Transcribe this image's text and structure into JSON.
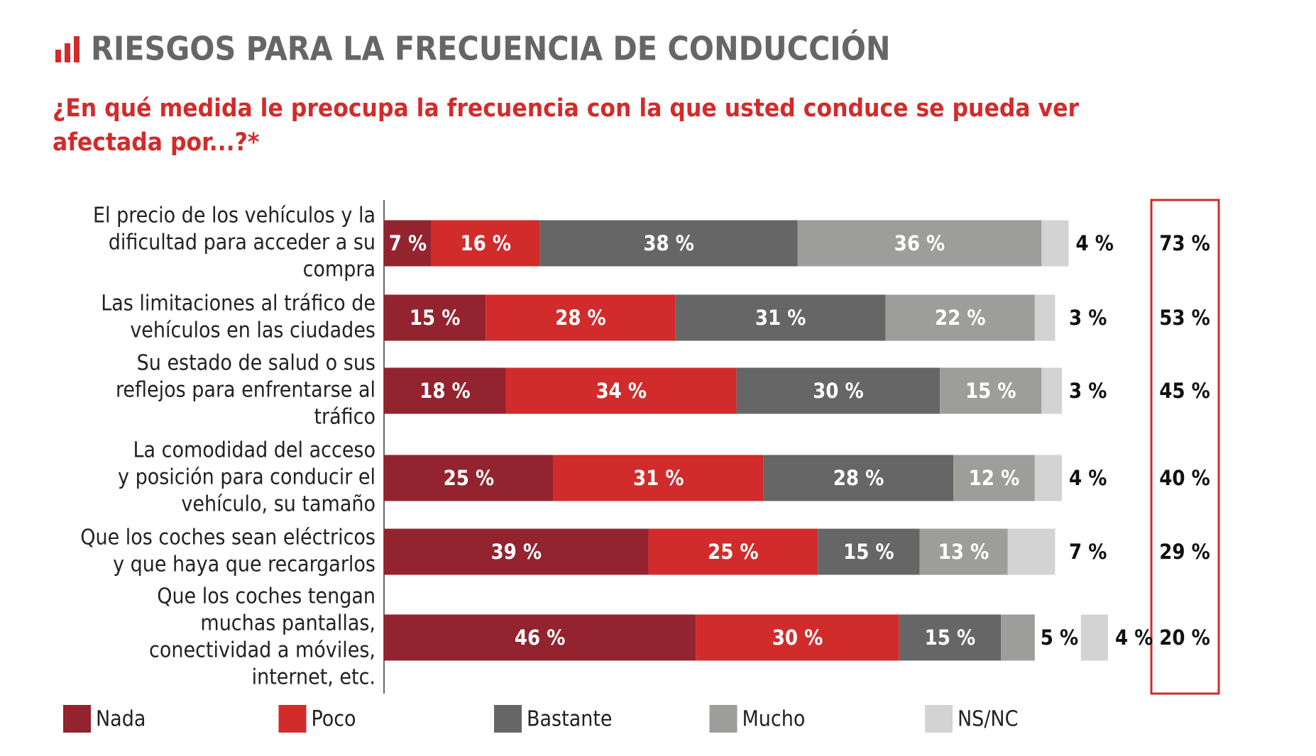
{
  "chart_data": {
    "type": "stacked_bar_horizontal",
    "title": "RIESGOS PARA LA FRECUENCIA DE CONDUCCIÓN",
    "subtitle": [
      "¿En qué medida le preocupa la frecuencia con la que usted conduce se pueda ver",
      "afectada por...?*"
    ],
    "categories": [
      [
        "El precio de los vehículos y la",
        "dificultad para acceder a su",
        "compra"
      ],
      [
        "Las limitaciones al tráfico de",
        "vehículos en las ciudades"
      ],
      [
        "Su estado de salud o sus",
        "reflejos para enfrentarse al",
        "tráfico"
      ],
      [
        "La comodidad del acceso",
        "y posición para conducir el",
        "vehículo, su tamaño"
      ],
      [
        "Que los coches sean eléctricos",
        "y que haya que recargarlos"
      ],
      [
        "Que los coches tengan",
        "muchas pantallas,",
        "conectividad a móviles,",
        "internet, etc."
      ]
    ],
    "series": [
      {
        "name": "Nada",
        "color": "#93232f",
        "values": [
          7,
          15,
          18,
          25,
          39,
          46
        ],
        "value_labels": [
          "7 %",
          "15 %",
          "18 %",
          "25 %",
          "39 %",
          "46 %"
        ]
      },
      {
        "name": "Poco",
        "color": "#d22b2b",
        "values": [
          16,
          28,
          34,
          31,
          25,
          30
        ],
        "value_labels": [
          "16 %",
          "28 %",
          "34 %",
          "31 %",
          "25 %",
          "30 %"
        ]
      },
      {
        "name": "Bastante",
        "color": "#666666",
        "values": [
          38,
          31,
          30,
          28,
          15,
          15
        ],
        "value_labels": [
          "38 %",
          "31 %",
          "30 %",
          "28 %",
          "15 %",
          "15 %"
        ]
      },
      {
        "name": "Mucho",
        "color": "#9d9d9b",
        "values": [
          36,
          22,
          15,
          12,
          13,
          5
        ],
        "value_labels": [
          "36 %",
          "22 %",
          "15 %",
          "12 %",
          "13 %",
          "5 %"
        ]
      },
      {
        "name": "NS/NC",
        "color": "#d3d3d3",
        "values": [
          4,
          3,
          3,
          4,
          7,
          4
        ],
        "value_labels": [
          "4 %",
          "3 %",
          "3 %",
          "4 %",
          "7 %",
          "4 %"
        ]
      }
    ],
    "totals": {
      "values": [
        73,
        53,
        45,
        40,
        29,
        20
      ],
      "value_labels": [
        "73 %",
        "53 %",
        "45 %",
        "40 %",
        "29 %",
        "20 %"
      ],
      "color": "#d22b2b"
    }
  }
}
